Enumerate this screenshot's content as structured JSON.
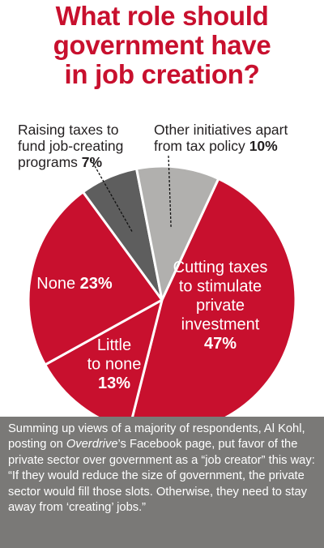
{
  "title_lines": [
    "What role should",
    "government have",
    "in job creation?"
  ],
  "footer": {
    "part1": "Summing up views of a majority of respondents, Al Kohl, posting on ",
    "publication": "Overdrive",
    "part2": "’s Facebook page, put favor of the private sector over government as a “job creator” this way: “If they would reduce the size of government, the private sector would fill those slots. Otherwise, they need to stay away from ‘creating’ jobs.”"
  },
  "chart_data": {
    "type": "pie",
    "title": "What role should government have in job creation?",
    "series": [
      {
        "values": [
          47,
          13,
          23,
          7,
          10
        ],
        "slices": [
          {
            "label_lines": [
              "Cutting taxes",
              "to stimulate",
              "private",
              "investment"
            ],
            "value_text": "47%",
            "value": 47,
            "color": "#c8102e"
          },
          {
            "label_lines": [
              "Little",
              "to none"
            ],
            "value_text": "13%",
            "value": 13,
            "color": "#c8102e"
          },
          {
            "label_lines": [
              "None"
            ],
            "value_text": "23%",
            "value": 23,
            "color": "#c8102e"
          },
          {
            "label_lines": [
              "Raising taxes to",
              "fund job-creating",
              "programs"
            ],
            "value_text": "7%",
            "value": 7,
            "color": "#5e5e5e"
          },
          {
            "label_lines": [
              "Other initiatives apart",
              "from tax policy"
            ],
            "value_text": "10%",
            "value": 10,
            "color": "#b1b0ae"
          }
        ]
      }
    ]
  }
}
